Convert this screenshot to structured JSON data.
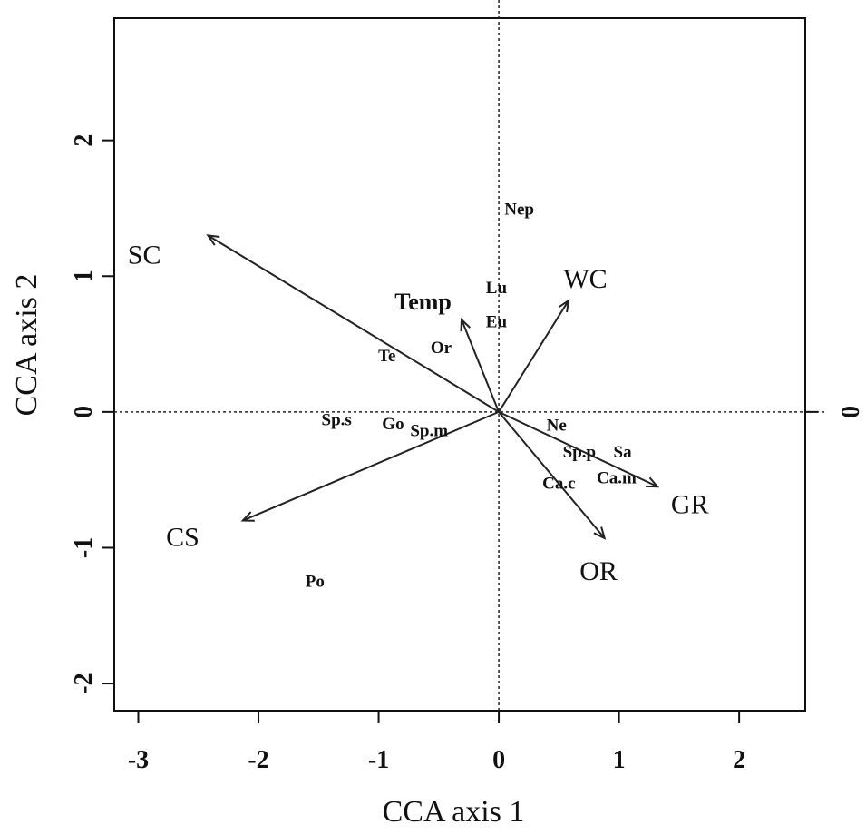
{
  "chart_data": {
    "type": "scatter",
    "title": "",
    "xlabel": "CCA axis 1",
    "ylabel": "CCA axis 2",
    "xlim": [
      -3.2,
      2.55
    ],
    "ylim": [
      -2.2,
      2.9
    ],
    "x_ticks": [
      -3,
      -2,
      -1,
      0,
      1,
      2
    ],
    "y_ticks": [
      -2,
      -1,
      0,
      1,
      2
    ],
    "x_tick_labels": [
      "-3",
      "-2",
      "-1",
      "0",
      "1",
      "2"
    ],
    "y_tick_labels": [
      "-2",
      "-1",
      "0",
      "1",
      "2"
    ],
    "right_tick_label": "0",
    "reference_lines": {
      "x": 0,
      "y": 0,
      "style": "dotted"
    },
    "species_points": [
      {
        "label": "Nep",
        "x": 0.17,
        "y": 1.5
      },
      {
        "label": "Lu",
        "x": -0.02,
        "y": 0.92
      },
      {
        "label": "Eu",
        "x": -0.02,
        "y": 0.67
      },
      {
        "label": "Or",
        "x": -0.48,
        "y": 0.48
      },
      {
        "label": "Te",
        "x": -0.93,
        "y": 0.42
      },
      {
        "label": "Sp.s",
        "x": -1.35,
        "y": -0.05
      },
      {
        "label": "Go",
        "x": -0.88,
        "y": -0.08
      },
      {
        "label": "Sp.m",
        "x": -0.58,
        "y": -0.13
      },
      {
        "label": "Ne",
        "x": 0.48,
        "y": -0.09
      },
      {
        "label": "Sp.p",
        "x": 0.67,
        "y": -0.29
      },
      {
        "label": "Sa",
        "x": 1.03,
        "y": -0.29
      },
      {
        "label": "Ca.m",
        "x": 0.98,
        "y": -0.48
      },
      {
        "label": "Ca.c",
        "x": 0.5,
        "y": -0.52
      },
      {
        "label": "Po",
        "x": -1.53,
        "y": -1.24
      }
    ],
    "env_vectors": [
      {
        "label": "SC",
        "x": -2.42,
        "y": 1.3,
        "lx": -2.95,
        "ly": 1.16
      },
      {
        "label": "Temp",
        "x": -0.31,
        "y": 0.68,
        "lx": -0.63,
        "ly": 0.82,
        "small": true
      },
      {
        "label": "WC",
        "x": 0.58,
        "y": 0.82,
        "lx": 0.72,
        "ly": 0.98
      },
      {
        "label": "GR",
        "x": 1.32,
        "y": -0.55,
        "lx": 1.59,
        "ly": -0.68
      },
      {
        "label": "OR",
        "x": 0.88,
        "y": -0.93,
        "lx": 0.83,
        "ly": -1.17
      },
      {
        "label": "CS",
        "x": -2.13,
        "y": -0.8,
        "lx": -2.63,
        "ly": -0.92
      }
    ]
  }
}
